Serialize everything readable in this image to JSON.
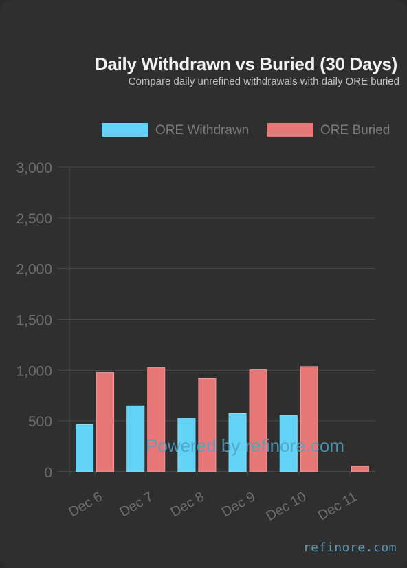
{
  "chart_data": {
    "type": "bar",
    "title": "Daily Withdrawn vs Buried (30 Days)",
    "subtitle": "Compare daily unrefined withdrawals with daily ORE buried",
    "categories": [
      "Dec 6",
      "Dec 7",
      "Dec 8",
      "Dec 9",
      "Dec 10",
      "Dec 11"
    ],
    "series": [
      {
        "name": "ORE Withdrawn",
        "color": "#62d2f5",
        "values": [
          465,
          648,
          524,
          573,
          555,
          0
        ]
      },
      {
        "name": "ORE Buried",
        "color": "#e87878",
        "values": [
          978,
          1028,
          918,
          1005,
          1037,
          55
        ]
      }
    ],
    "ylim": [
      0,
      3000
    ],
    "yticks": [
      "0",
      "500",
      "1,000",
      "1,500",
      "2,000",
      "2,500",
      "3,000"
    ],
    "ytick_values": [
      0,
      500,
      1000,
      1500,
      2000,
      2500,
      3000
    ],
    "grid": true,
    "legend": "top"
  },
  "watermark": "Powered by refinore.com",
  "brand": "refinore.com"
}
